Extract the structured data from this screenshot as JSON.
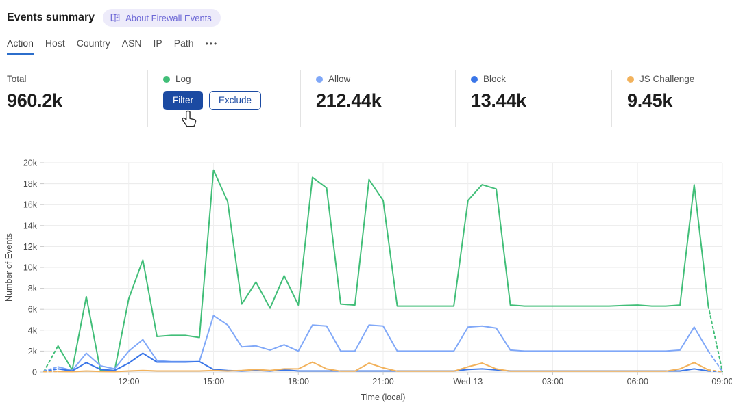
{
  "colors": {
    "accent": "#2C6ECB",
    "primary_button": "#1B4AA2",
    "primary_button_text": "#FFFFFF",
    "badge_bg": "#EDEBFA",
    "badge_text": "#6C67D6",
    "divider": "#E3E3E3",
    "grid": "#E9E9E9",
    "axis_text": "#4A4A4A",
    "text_dark": "#1D1D1D",
    "text_muted": "#4D4D4D"
  },
  "header": {
    "title": "Events summary",
    "about_badge": {
      "label": "About Firewall Events"
    }
  },
  "tabs": {
    "items": [
      {
        "label": "Action",
        "active": true
      },
      {
        "label": "Host",
        "active": false
      },
      {
        "label": "Country",
        "active": false
      },
      {
        "label": "ASN",
        "active": false
      },
      {
        "label": "IP",
        "active": false
      },
      {
        "label": "Path",
        "active": false
      }
    ],
    "more": "•••"
  },
  "stats": {
    "cards": [
      {
        "label": "Total",
        "value": "960.2k"
      },
      {
        "label": "Log",
        "color": "#41BE78",
        "filter_label": "Filter",
        "exclude_label": "Exclude"
      },
      {
        "label": "Allow",
        "color": "#80A8F8",
        "value": "212.44k"
      },
      {
        "label": "Block",
        "color": "#3A76E8",
        "value": "13.44k"
      },
      {
        "label": "JS Challenge",
        "color": "#F2B25C",
        "value": "9.45k"
      }
    ]
  },
  "chart_data": {
    "type": "line",
    "title": "",
    "y_axis": {
      "title": "Number of Events",
      "max_k": 20,
      "step_k": 2,
      "unit": "k",
      "ylim": [
        0,
        20000
      ]
    },
    "x_axis": {
      "title": "Time (local)",
      "interval_minutes": 30,
      "grid": true,
      "ticks": [
        {
          "label": "12:00",
          "i": 6
        },
        {
          "label": "15:00",
          "i": 12
        },
        {
          "label": "18:00",
          "i": 18
        },
        {
          "label": "21:00",
          "i": 24
        },
        {
          "label": "Wed 13",
          "i": 30
        },
        {
          "label": "03:00",
          "i": 36
        },
        {
          "label": "06:00",
          "i": 42
        },
        {
          "label": "09:00",
          "i": 48
        }
      ]
    },
    "legend_position": "stat-cards-above",
    "partial_interval_dashed_ends": true,
    "series": [
      {
        "name": "Log",
        "color": "#41BE78",
        "values_k": [
          0.05,
          2.5,
          0.2,
          7.2,
          0.15,
          0.1,
          7.0,
          10.7,
          3.4,
          3.5,
          3.5,
          3.3,
          19.3,
          16.3,
          6.5,
          8.6,
          6.1,
          9.2,
          6.4,
          18.6,
          17.6,
          6.5,
          6.4,
          18.4,
          16.4,
          6.3,
          6.3,
          6.3,
          6.3,
          6.3,
          16.4,
          17.9,
          17.5,
          6.4,
          6.3,
          6.3,
          6.3,
          6.3,
          6.3,
          6.3,
          6.3,
          6.35,
          6.4,
          6.3,
          6.3,
          6.4,
          17.9,
          6.3,
          0.05
        ]
      },
      {
        "name": "Allow",
        "color": "#80A8F8",
        "values_k": [
          0.1,
          0.5,
          0.15,
          1.8,
          0.6,
          0.3,
          2.0,
          3.1,
          1.1,
          1.0,
          1.0,
          1.0,
          5.4,
          4.5,
          2.4,
          2.5,
          2.1,
          2.6,
          2.0,
          4.5,
          4.4,
          2.0,
          2.0,
          4.5,
          4.4,
          2.0,
          2.0,
          2.0,
          2.0,
          2.0,
          4.3,
          4.4,
          4.2,
          2.1,
          2.0,
          2.0,
          2.0,
          2.0,
          2.0,
          2.0,
          2.0,
          2.0,
          2.0,
          2.0,
          2.0,
          2.1,
          4.3,
          2.0,
          0.05
        ]
      },
      {
        "name": "Block",
        "color": "#3A76E8",
        "values_k": [
          0.05,
          0.3,
          0.1,
          0.9,
          0.25,
          0.15,
          0.85,
          1.8,
          0.95,
          0.95,
          0.95,
          1.0,
          0.25,
          0.15,
          0.1,
          0.15,
          0.1,
          0.2,
          0.1,
          0.1,
          0.1,
          0.1,
          0.1,
          0.1,
          0.1,
          0.1,
          0.1,
          0.1,
          0.1,
          0.1,
          0.25,
          0.3,
          0.2,
          0.1,
          0.1,
          0.1,
          0.1,
          0.1,
          0.1,
          0.1,
          0.1,
          0.1,
          0.1,
          0.1,
          0.1,
          0.1,
          0.3,
          0.1,
          0.03
        ]
      },
      {
        "name": "JS Challenge",
        "color": "#F2B25C",
        "values_k": [
          0.03,
          0.05,
          0.03,
          0.1,
          0.05,
          0.03,
          0.1,
          0.15,
          0.1,
          0.1,
          0.1,
          0.1,
          0.15,
          0.1,
          0.15,
          0.25,
          0.15,
          0.3,
          0.3,
          0.95,
          0.3,
          0.08,
          0.08,
          0.85,
          0.4,
          0.08,
          0.08,
          0.08,
          0.08,
          0.08,
          0.5,
          0.85,
          0.3,
          0.08,
          0.08,
          0.08,
          0.08,
          0.08,
          0.08,
          0.08,
          0.08,
          0.08,
          0.08,
          0.08,
          0.08,
          0.3,
          0.9,
          0.2,
          0.02
        ]
      }
    ]
  }
}
